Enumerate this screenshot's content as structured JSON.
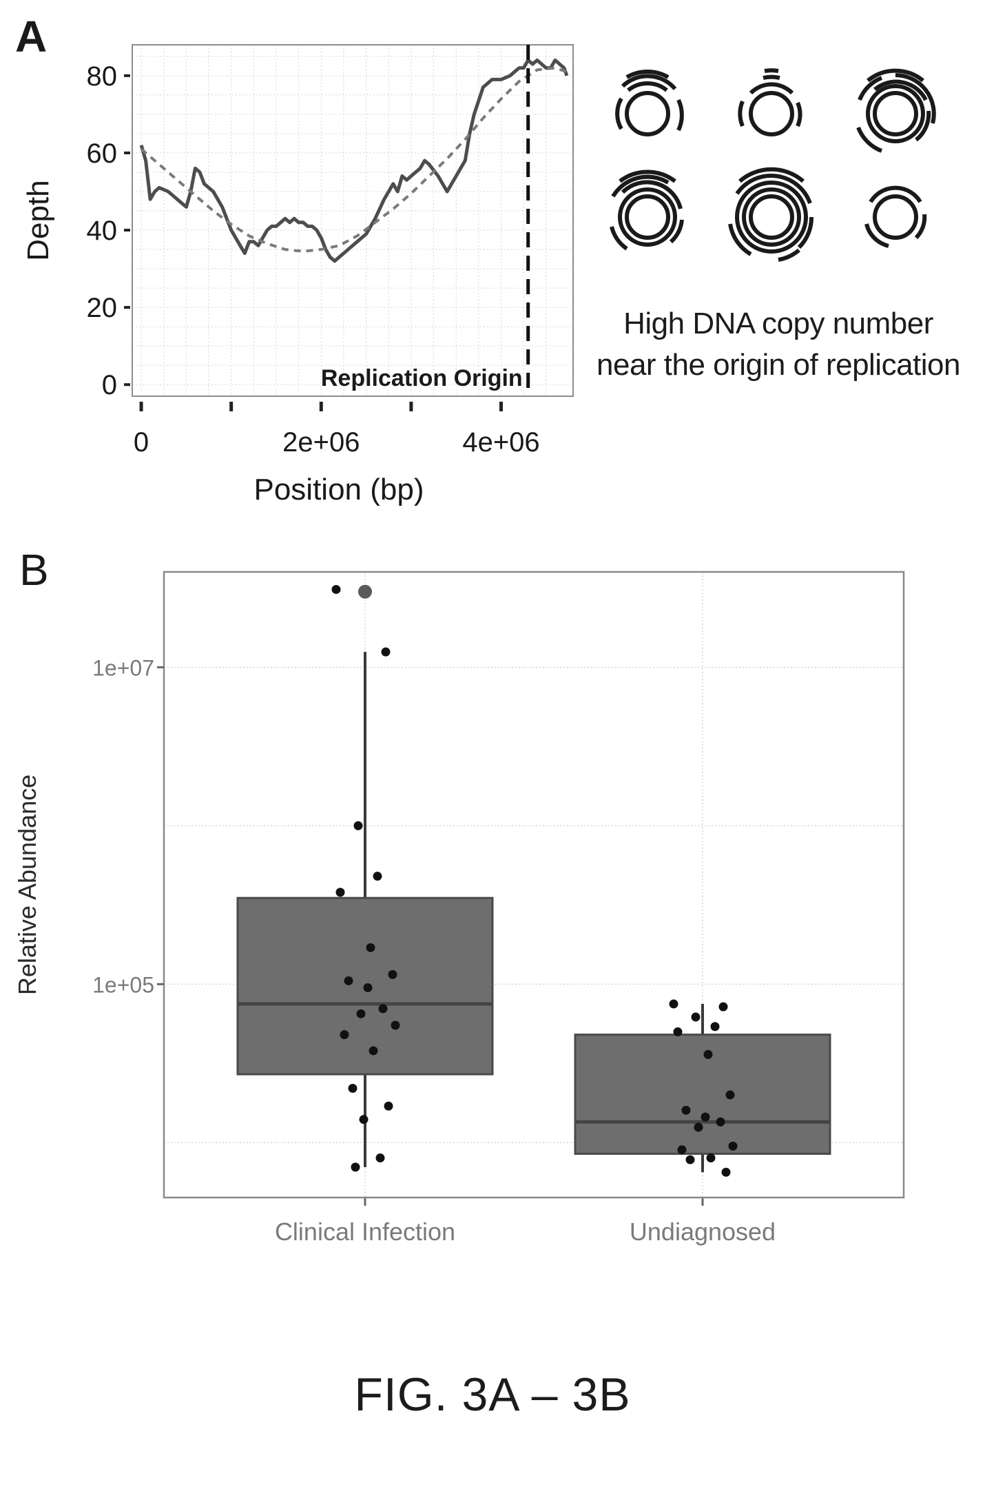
{
  "panel_a": {
    "letter": "A",
    "annotation": [
      "High DNA copy number",
      "near the origin of replication"
    ]
  },
  "panel_b": {
    "letter": "B"
  },
  "caption": "FIG. 3A – 3B",
  "colors": {
    "line": "#4d4d4d",
    "fit": "#7a7a7a",
    "box_fill": "#6e6e6e",
    "grid": "#d6d6d6",
    "points": "#111111"
  },
  "chart_data": [
    {
      "type": "line",
      "title": "",
      "xlabel": "Position (bp)",
      "ylabel": "Depth",
      "xlim": [
        -100000,
        4800000
      ],
      "ylim": [
        -3,
        88
      ],
      "x_ticks": [
        0,
        2000000,
        4000000
      ],
      "x_tick_labels": [
        "0",
        "2e+06",
        "4e+06"
      ],
      "y_ticks": [
        0,
        20,
        40,
        60,
        80
      ],
      "y_tick_labels": [
        "0",
        "20",
        "40",
        "60",
        "80"
      ],
      "grid": true,
      "series": [
        {
          "style": "solid",
          "x": [
            0,
            50000,
            100000,
            150000,
            200000,
            300000,
            400000,
            450000,
            500000,
            550000,
            600000,
            650000,
            700000,
            800000,
            900000,
            950000,
            1000000,
            1050000,
            1100000,
            1150000,
            1200000,
            1250000,
            1300000,
            1350000,
            1400000,
            1450000,
            1500000,
            1550000,
            1600000,
            1650000,
            1700000,
            1750000,
            1800000,
            1850000,
            1900000,
            1950000,
            2000000,
            2050000,
            2100000,
            2150000,
            2200000,
            2300000,
            2400000,
            2500000,
            2600000,
            2700000,
            2800000,
            2850000,
            2900000,
            2950000,
            3000000,
            3100000,
            3150000,
            3200000,
            3300000,
            3400000,
            3500000,
            3550000,
            3600000,
            3650000,
            3700000,
            3800000,
            3900000,
            4000000,
            4100000,
            4150000,
            4200000,
            4250000,
            4300000,
            4350000,
            4400000,
            4450000,
            4500000,
            4550000,
            4600000,
            4650000,
            4700000,
            4730000
          ],
          "y": [
            62,
            58,
            48,
            50,
            51,
            50,
            48,
            47,
            46,
            50,
            56,
            55,
            52,
            50,
            46,
            43,
            40,
            38,
            36,
            34,
            37,
            37,
            36,
            38,
            40,
            41,
            41,
            42,
            43,
            42,
            43,
            42,
            42,
            41,
            41,
            40,
            38,
            35,
            33,
            32,
            33,
            35,
            37,
            39,
            43,
            48,
            52,
            50,
            54,
            53,
            54,
            56,
            58,
            57,
            54,
            50,
            54,
            56,
            58,
            65,
            70,
            77,
            79,
            79,
            80,
            81,
            82,
            82,
            84,
            83,
            84,
            83,
            82,
            82,
            84,
            83,
            82,
            80
          ]
        },
        {
          "style": "dashed",
          "x": [
            0,
            200000,
            400000,
            600000,
            800000,
            1000000,
            1200000,
            1400000,
            1600000,
            1800000,
            2000000,
            2200000,
            2400000,
            2600000,
            2800000,
            3000000,
            3200000,
            3400000,
            3600000,
            3800000,
            4000000,
            4200000,
            4400000,
            4600000,
            4730000
          ],
          "y": [
            61,
            57,
            53,
            49,
            45,
            41.5,
            38.5,
            36.5,
            35,
            34.5,
            35,
            36,
            38.5,
            42,
            45.5,
            49.5,
            54,
            58.5,
            63.5,
            69,
            74,
            78.5,
            81.5,
            82,
            81
          ]
        }
      ],
      "annotations": [
        {
          "type": "vline",
          "x": 4300000,
          "style": "dashed",
          "label": "Replication Origin"
        }
      ]
    },
    {
      "type": "box",
      "title": "",
      "xlabel": "",
      "ylabel": "Relative Abundance",
      "y_scale": "log10",
      "ylim": [
        4500,
        40000000
      ],
      "y_ticks": [
        100000,
        10000000
      ],
      "y_tick_labels": [
        "1e+05",
        "1e+07"
      ],
      "minor_gridlines": [
        10000,
        1000000
      ],
      "grid": true,
      "categories": [
        "Clinical Infection",
        "Undiagnosed"
      ],
      "boxes": [
        {
          "name": "Clinical Infection",
          "q1": 27000,
          "median": 75000,
          "q3": 350000,
          "whisker_low": 7000,
          "whisker_high": 12500000,
          "outliers": [
            30000000
          ],
          "points": [
            31000000,
            12500000,
            1000000,
            480000,
            380000,
            170000,
            115000,
            105000,
            95000,
            70000,
            65000,
            55000,
            48000,
            38000,
            22000,
            17000,
            14000,
            8000,
            7000
          ]
        },
        {
          "name": "Undiagnosed",
          "q1": 8500,
          "median": 13500,
          "q3": 48000,
          "whisker_low": 6500,
          "whisker_high": 75000,
          "outliers": [],
          "points": [
            75000,
            72000,
            62000,
            54000,
            50000,
            36000,
            20000,
            16000,
            14500,
            13500,
            12500,
            9500,
            9000,
            8000,
            7800,
            6500
          ]
        }
      ]
    }
  ]
}
